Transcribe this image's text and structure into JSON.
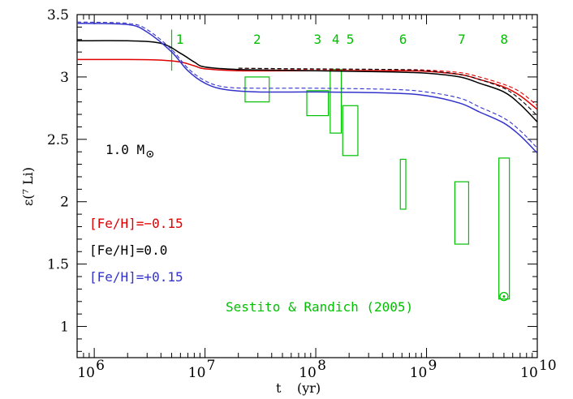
{
  "chart_data": {
    "type": "line",
    "xlabel_t": "t",
    "xlabel_unit": "(yr)",
    "ylabel": "ε(⁷ Li)",
    "xscale": "log",
    "xlim": [
      700000,
      10000000000
    ],
    "ylim": [
      0.75,
      3.5
    ],
    "y_ticks": [
      "1",
      "1.5",
      "2",
      "2.5",
      "3",
      "3.5"
    ],
    "x_ticks": [
      {
        "base": "10",
        "exp": "6",
        "value": 1000000
      },
      {
        "base": "10",
        "exp": "7",
        "value": 10000000
      },
      {
        "base": "10",
        "exp": "8",
        "value": 100000000
      },
      {
        "base": "10",
        "exp": "9",
        "value": 1000000000
      },
      {
        "base": "10",
        "exp": "10",
        "value": 10000000000
      }
    ],
    "annotations": {
      "mass_label": "1.0 M",
      "mass_sub": "⊙",
      "source": "Sestito & Randich (2005)",
      "sun_symbol": "⊙"
    },
    "colors": {
      "red": "#e00000",
      "black": "#000000",
      "blue": "#3333cc",
      "green": "#00c000"
    },
    "series": [
      {
        "name": "[Fe/H]=−0.15",
        "color": "#e00000",
        "dash": false,
        "x": [
          700000,
          2000000,
          4000000,
          6000000,
          8000000,
          10000000,
          20000000,
          100000000,
          500000000,
          1000000000,
          2000000000,
          3000000000,
          5000000000,
          7000000000,
          10000000000
        ],
        "y": [
          3.14,
          3.14,
          3.135,
          3.12,
          3.09,
          3.065,
          3.05,
          3.05,
          3.05,
          3.045,
          3.02,
          2.98,
          2.92,
          2.85,
          2.74
        ]
      },
      {
        "name": "",
        "color": "#e00000",
        "dash": true,
        "x": [
          20000000,
          100000000,
          500000000,
          1000000000,
          2000000000,
          3000000000,
          5000000000,
          7000000000,
          10000000000
        ],
        "y": [
          3.07,
          3.06,
          3.06,
          3.055,
          3.035,
          3.0,
          2.94,
          2.88,
          2.77
        ]
      },
      {
        "name": "[Fe/H]=0.0",
        "color": "#000000",
        "dash": false,
        "x": [
          700000,
          2000000,
          4000000,
          6000000,
          8000000,
          10000000,
          20000000,
          100000000,
          500000000,
          1000000000,
          2000000000,
          3000000000,
          5000000000,
          7000000000,
          10000000000
        ],
        "y": [
          3.29,
          3.29,
          3.27,
          3.19,
          3.12,
          3.08,
          3.06,
          3.05,
          3.04,
          3.03,
          3.0,
          2.95,
          2.88,
          2.78,
          2.64
        ]
      },
      {
        "name": "",
        "color": "#000000",
        "dash": true,
        "x": [
          20000000,
          100000000,
          500000000,
          1000000000,
          2000000000,
          3000000000,
          5000000000,
          7000000000,
          10000000000
        ],
        "y": [
          3.07,
          3.065,
          3.06,
          3.05,
          3.02,
          2.98,
          2.91,
          2.82,
          2.69
        ]
      },
      {
        "name": "[Fe/H]=+0.15",
        "color": "#3333cc",
        "dash": false,
        "x": [
          700000,
          2000000,
          3000000,
          5000000,
          7000000,
          10000000,
          15000000,
          30000000,
          100000000,
          500000000,
          1000000000,
          2000000000,
          3000000000,
          5000000000,
          7000000000,
          10000000000
        ],
        "y": [
          3.43,
          3.42,
          3.36,
          3.2,
          3.05,
          2.95,
          2.9,
          2.88,
          2.88,
          2.87,
          2.85,
          2.79,
          2.72,
          2.63,
          2.53,
          2.39
        ]
      },
      {
        "name": "",
        "color": "#3333cc",
        "dash": true,
        "x": [
          700000,
          2000000,
          3000000,
          5000000,
          7000000,
          10000000,
          15000000,
          30000000,
          100000000,
          500000000,
          1000000000,
          2000000000,
          3000000000,
          5000000000,
          7000000000,
          10000000000
        ],
        "y": [
          3.44,
          3.43,
          3.38,
          3.22,
          3.07,
          2.97,
          2.92,
          2.91,
          2.91,
          2.9,
          2.88,
          2.83,
          2.76,
          2.67,
          2.57,
          2.43
        ]
      }
    ],
    "clusters": [
      {
        "label": "1",
        "x_min": 5000000,
        "x_max": 5000000,
        "y_min": 3.05,
        "y_max": 3.38
      },
      {
        "label": "2",
        "x_min": 23000000,
        "x_max": 38000000,
        "y_min": 2.8,
        "y_max": 3.0
      },
      {
        "label": "3",
        "x_min": 83000000,
        "x_max": 130000000,
        "y_min": 2.69,
        "y_max": 2.89
      },
      {
        "label": "4",
        "x_min": 135000000,
        "x_max": 170000000,
        "y_min": 2.55,
        "y_max": 3.06
      },
      {
        "label": "5",
        "x_min": 175000000,
        "x_max": 240000000,
        "y_min": 2.37,
        "y_max": 2.77
      },
      {
        "label": "6",
        "x_min": 580000000,
        "x_max": 650000000,
        "y_min": 1.94,
        "y_max": 2.34
      },
      {
        "label": "7",
        "x_min": 1800000000,
        "x_max": 2400000000,
        "y_min": 1.66,
        "y_max": 2.16
      },
      {
        "label": "8",
        "x_min": 4500000000,
        "x_max": 5600000000,
        "y_min": 1.22,
        "y_max": 2.35
      }
    ],
    "sun_point": {
      "x": 5000000000,
      "y": 1.24
    }
  }
}
